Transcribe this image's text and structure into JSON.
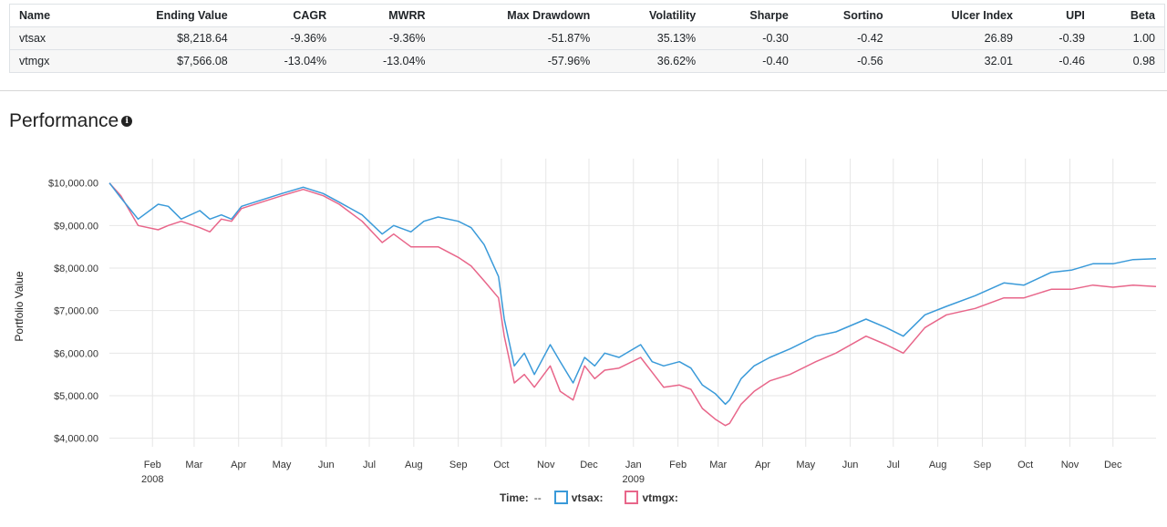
{
  "table": {
    "headers": [
      "Name",
      "Ending Value",
      "CAGR",
      "MWRR",
      "Max Drawdown",
      "Volatility",
      "Sharpe",
      "Sortino",
      "Ulcer Index",
      "UPI",
      "Beta"
    ],
    "rows": [
      [
        "vtsax",
        "$8,218.64",
        "-9.36%",
        "-9.36%",
        "-51.87%",
        "35.13%",
        "-0.30",
        "-0.42",
        "26.89",
        "-0.39",
        "1.00"
      ],
      [
        "vtmgx",
        "$7,566.08",
        "-13.04%",
        "-13.04%",
        "-57.96%",
        "36.62%",
        "-0.40",
        "-0.56",
        "32.01",
        "-0.46",
        "0.98"
      ]
    ]
  },
  "section": {
    "title": "Performance",
    "info_icon": "info-icon"
  },
  "legend": {
    "time_label": "Time:",
    "time_value": "--"
  },
  "colors": {
    "vtsax": "#3a9ad9",
    "vtmgx": "#e8668a",
    "grid": "#e6e6e6"
  },
  "chart_data": {
    "type": "line",
    "ylabel": "Portfolio Value",
    "xlabel": "",
    "ylim": [
      3800,
      10400
    ],
    "y_ticks": [
      "$4,000.00",
      "$5,000.00",
      "$6,000.00",
      "$7,000.00",
      "$8,000.00",
      "$9,000.00",
      "$10,000.00"
    ],
    "y_tick_values": [
      4000,
      5000,
      6000,
      7000,
      8000,
      9000,
      10000
    ],
    "x_ticks": [
      "Feb",
      "Mar",
      "Apr",
      "May",
      "Jun",
      "Jul",
      "Aug",
      "Sep",
      "Oct",
      "Nov",
      "Dec",
      "Jan",
      "Feb",
      "Mar",
      "Apr",
      "May",
      "Jun",
      "Jul",
      "Aug",
      "Sep",
      "Oct",
      "Nov",
      "Dec"
    ],
    "x_tick_dates": [
      "2008-02-01",
      "2008-03-01",
      "2008-04-01",
      "2008-05-01",
      "2008-06-01",
      "2008-07-01",
      "2008-08-01",
      "2008-09-01",
      "2008-10-01",
      "2008-11-01",
      "2008-12-01",
      "2009-01-01",
      "2009-02-01",
      "2009-03-01",
      "2009-04-01",
      "2009-05-01",
      "2009-06-01",
      "2009-07-01",
      "2009-08-01",
      "2009-09-01",
      "2009-10-01",
      "2009-11-01",
      "2009-12-01"
    ],
    "year_labels": [
      {
        "label": "2008",
        "date": "2008-02-01"
      },
      {
        "label": "2009",
        "date": "2009-01-01"
      }
    ],
    "xlim": [
      "2008-01-02",
      "2009-12-31"
    ],
    "grid": true,
    "legend_position": "bottom",
    "series": [
      {
        "name": "vtsax",
        "x": [
          "2008-01-02",
          "2008-01-10",
          "2008-01-22",
          "2008-02-05",
          "2008-02-12",
          "2008-02-21",
          "2008-03-05",
          "2008-03-12",
          "2008-03-20",
          "2008-03-27",
          "2008-04-03",
          "2008-04-17",
          "2008-05-01",
          "2008-05-16",
          "2008-05-30",
          "2008-06-10",
          "2008-06-26",
          "2008-07-10",
          "2008-07-18",
          "2008-07-30",
          "2008-08-08",
          "2008-08-18",
          "2008-09-01",
          "2008-09-10",
          "2008-09-19",
          "2008-09-29",
          "2008-10-03",
          "2008-10-10",
          "2008-10-17",
          "2008-10-24",
          "2008-11-04",
          "2008-11-11",
          "2008-11-20",
          "2008-11-28",
          "2008-12-05",
          "2008-12-12",
          "2008-12-22",
          "2009-01-06",
          "2009-01-14",
          "2009-01-22",
          "2009-02-02",
          "2009-02-10",
          "2009-02-18",
          "2009-02-27",
          "2009-03-06",
          "2009-03-09",
          "2009-03-17",
          "2009-03-26",
          "2009-04-06",
          "2009-04-20",
          "2009-05-08",
          "2009-05-22",
          "2009-06-12",
          "2009-06-26",
          "2009-07-08",
          "2009-07-23",
          "2009-08-07",
          "2009-08-27",
          "2009-09-16",
          "2009-09-30",
          "2009-10-19",
          "2009-11-02",
          "2009-11-17",
          "2009-12-01",
          "2009-12-15",
          "2009-12-31"
        ],
        "values": [
          10000,
          9650,
          9150,
          9500,
          9450,
          9150,
          9350,
          9150,
          9250,
          9150,
          9450,
          9600,
          9750,
          9900,
          9750,
          9550,
          9250,
          8800,
          9000,
          8850,
          9100,
          9200,
          9100,
          8950,
          8550,
          7800,
          6800,
          5700,
          6000,
          5500,
          6200,
          5800,
          5300,
          5900,
          5700,
          6000,
          5900,
          6200,
          5800,
          5700,
          5800,
          5650,
          5250,
          5050,
          4800,
          4900,
          5400,
          5700,
          5900,
          6100,
          6400,
          6500,
          6800,
          6600,
          6400,
          6900,
          7100,
          7350,
          7650,
          7600,
          7900,
          7950,
          8100,
          8100,
          8200,
          8220
        ]
      },
      {
        "name": "vtmgx",
        "x": [
          "2008-01-02",
          "2008-01-10",
          "2008-01-22",
          "2008-02-05",
          "2008-02-12",
          "2008-02-21",
          "2008-03-05",
          "2008-03-12",
          "2008-03-20",
          "2008-03-27",
          "2008-04-03",
          "2008-04-17",
          "2008-05-01",
          "2008-05-16",
          "2008-05-30",
          "2008-06-10",
          "2008-06-26",
          "2008-07-10",
          "2008-07-18",
          "2008-07-30",
          "2008-08-08",
          "2008-08-18",
          "2008-09-01",
          "2008-09-10",
          "2008-09-19",
          "2008-09-29",
          "2008-10-03",
          "2008-10-10",
          "2008-10-17",
          "2008-10-24",
          "2008-11-04",
          "2008-11-11",
          "2008-11-20",
          "2008-11-28",
          "2008-12-05",
          "2008-12-12",
          "2008-12-22",
          "2009-01-06",
          "2009-01-14",
          "2009-01-22",
          "2009-02-02",
          "2009-02-10",
          "2009-02-18",
          "2009-02-27",
          "2009-03-06",
          "2009-03-09",
          "2009-03-17",
          "2009-03-26",
          "2009-04-06",
          "2009-04-20",
          "2009-05-08",
          "2009-05-22",
          "2009-06-12",
          "2009-06-26",
          "2009-07-08",
          "2009-07-23",
          "2009-08-07",
          "2009-08-27",
          "2009-09-16",
          "2009-09-30",
          "2009-10-19",
          "2009-11-02",
          "2009-11-17",
          "2009-12-01",
          "2009-12-15",
          "2009-12-31"
        ],
        "values": [
          10000,
          9700,
          9000,
          8900,
          9000,
          9100,
          8950,
          8850,
          9150,
          9100,
          9400,
          9550,
          9700,
          9850,
          9700,
          9500,
          9100,
          8600,
          8800,
          8500,
          8500,
          8500,
          8250,
          8050,
          7700,
          7300,
          6400,
          5300,
          5500,
          5200,
          5700,
          5100,
          4900,
          5700,
          5400,
          5600,
          5650,
          5900,
          5550,
          5200,
          5250,
          5150,
          4700,
          4450,
          4300,
          4350,
          4800,
          5100,
          5350,
          5500,
          5800,
          6000,
          6400,
          6200,
          6000,
          6600,
          6900,
          7050,
          7300,
          7300,
          7500,
          7500,
          7600,
          7550,
          7600,
          7566
        ]
      }
    ]
  }
}
